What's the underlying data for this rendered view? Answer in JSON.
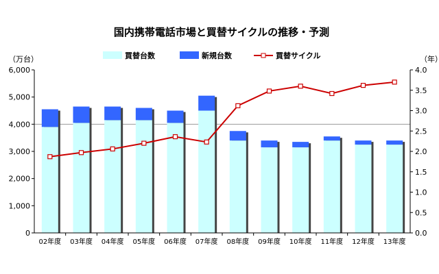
{
  "chart_data": {
    "type": "bar",
    "title": "国内携帯電話市場と買替サイクルの推移・予測",
    "left_axis_unit": "（万台）",
    "right_axis_unit": "（年）",
    "categories": [
      "02年度",
      "03年度",
      "04年度",
      "05年度",
      "06年度",
      "07年度",
      "08年度",
      "09年度",
      "10年度",
      "11年度",
      "12年度",
      "13年度"
    ],
    "series": [
      {
        "name": "買替台数",
        "kind": "bar",
        "stack": "total",
        "axis": "left",
        "color": "#ccffff",
        "values": [
          3900,
          4050,
          4150,
          4150,
          4050,
          4500,
          3400,
          3150,
          3150,
          3400,
          3250,
          3250
        ]
      },
      {
        "name": "新規台数",
        "kind": "bar",
        "stack": "total",
        "axis": "left",
        "color": "#3366ff",
        "values": [
          650,
          600,
          500,
          450,
          450,
          550,
          350,
          250,
          200,
          150,
          150,
          150
        ]
      },
      {
        "name": "買替サイクル",
        "kind": "line",
        "axis": "right",
        "color": "#cc0000",
        "values": [
          1.87,
          1.97,
          2.06,
          2.2,
          2.36,
          2.23,
          3.12,
          3.48,
          3.6,
          3.42,
          3.62,
          3.7
        ]
      }
    ],
    "y_left": {
      "min": 0,
      "max": 6000,
      "ticks": [
        0,
        1000,
        2000,
        3000,
        4000,
        5000,
        6000
      ],
      "tick_labels": [
        "0",
        "1,000",
        "2,000",
        "3,000",
        "4,000",
        "5,000",
        "6,000"
      ]
    },
    "y_right": {
      "min": 0,
      "max": 4.0,
      "ticks": [
        0,
        0.5,
        1,
        1.5,
        2,
        2.5,
        3,
        3.5,
        4
      ],
      "tick_labels": [
        "0.0",
        "0.5",
        "1.0",
        "1.5",
        "2.0",
        "2.5",
        "3.0",
        "3.5",
        "4.0"
      ]
    },
    "reference_line_left_value": 4000,
    "grid": false,
    "legend": "top"
  }
}
